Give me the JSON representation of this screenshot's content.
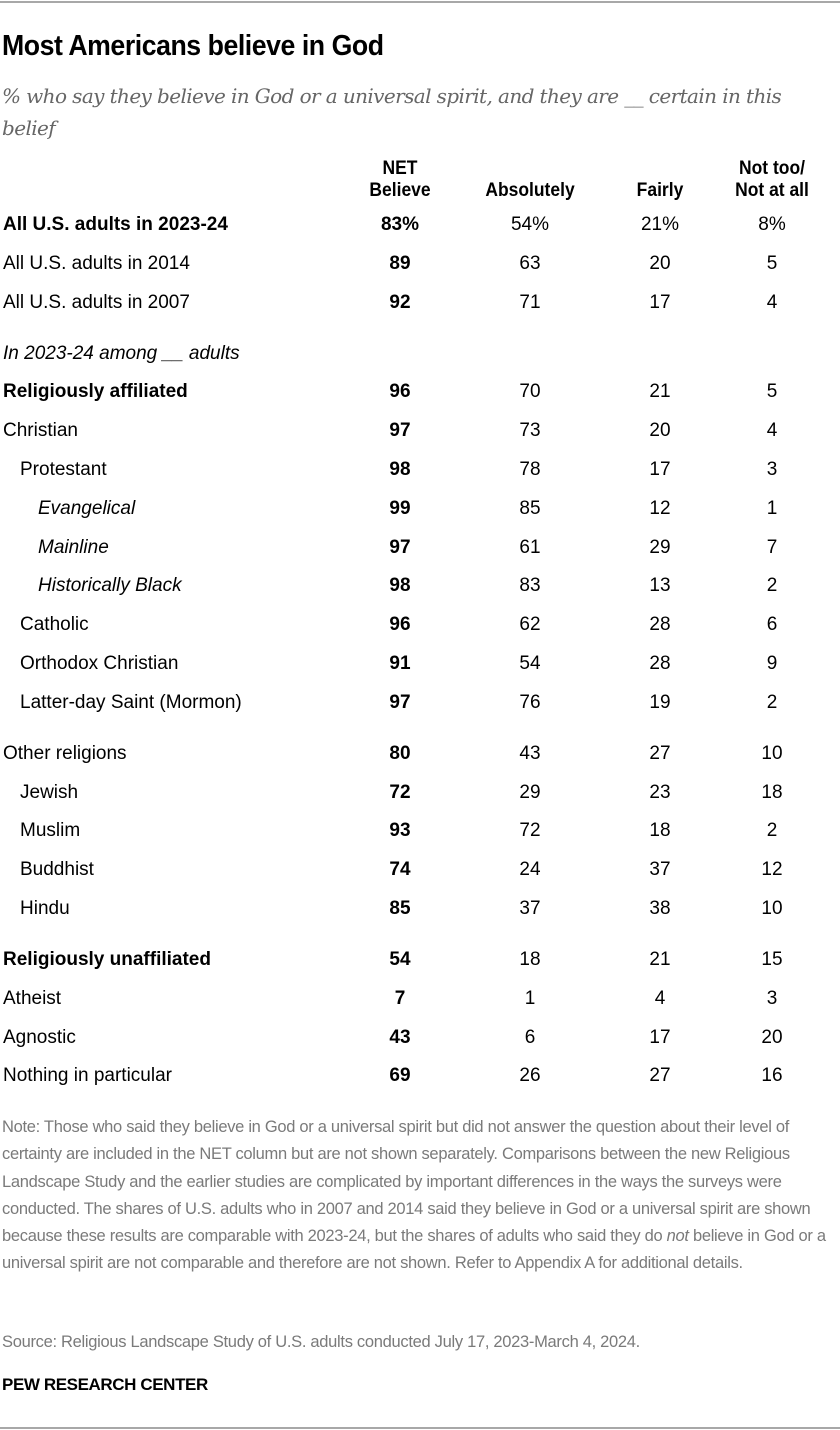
{
  "title": "Most Americans believe in God",
  "subtitle": "% who say they believe in God or a universal spirit, and they are __ certain in this belief",
  "note_before": "Note: Those who said they believe in God or a universal spirit but did not answer the question about their level of certainty are included in the NET column but are not shown separately. Comparisons between the new Religious Landscape Study and the earlier studies are complicated by important differences in the ways the surveys were conducted. The shares of U.S. adults who in 2007 and 2014 said they believe in God or a universal spirit are shown because these results are comparable with 2023-24, but the shares of adults who said they do ",
  "note_italic": "not",
  "note_after": " believe in God or a universal spirit are not comparable and therefore are not shown. Refer to Appendix A for additional details.",
  "source": "Source: Religious Landscape Study of U.S. adults conducted July 17, 2023-March 4, 2024.",
  "org": "PEW RESEARCH CENTER",
  "chart_data": {
    "type": "table",
    "title": "Most Americans believe in God",
    "columns": [
      "NET Believe",
      "Absolutely",
      "Fairly",
      "Not too/ Not at all"
    ],
    "column_lines": [
      [
        "NET",
        "Believe"
      ],
      [
        "",
        "Absolutely"
      ],
      [
        "",
        "Fairly"
      ],
      [
        "Not too/",
        "Not at all"
      ]
    ],
    "rows": [
      {
        "label": "All U.S. adults in 2023-24",
        "level": 0,
        "style": "bold",
        "values": [
          "83%",
          "54%",
          "21%",
          "8%"
        ]
      },
      {
        "label": "All U.S. adults in 2014",
        "level": 0,
        "style": "normal",
        "values": [
          "89",
          "63",
          "20",
          "5"
        ]
      },
      {
        "label": "All U.S. adults in 2007",
        "level": 0,
        "style": "normal",
        "values": [
          "92",
          "71",
          "17",
          "4"
        ]
      },
      {
        "label": "In 2023-24 among __ adults",
        "level": 0,
        "style": "section",
        "gap": true,
        "values": []
      },
      {
        "label": "Religiously affiliated",
        "level": 0,
        "style": "bold",
        "values": [
          "96",
          "70",
          "21",
          "5"
        ]
      },
      {
        "label": "Christian",
        "level": 0,
        "style": "normal",
        "values": [
          "97",
          "73",
          "20",
          "4"
        ]
      },
      {
        "label": "Protestant",
        "level": 1,
        "style": "normal",
        "values": [
          "98",
          "78",
          "17",
          "3"
        ]
      },
      {
        "label": "Evangelical",
        "level": 2,
        "style": "italic",
        "values": [
          "99",
          "85",
          "12",
          "1"
        ]
      },
      {
        "label": "Mainline",
        "level": 2,
        "style": "italic",
        "values": [
          "97",
          "61",
          "29",
          "7"
        ]
      },
      {
        "label": "Historically Black",
        "level": 2,
        "style": "italic",
        "values": [
          "98",
          "83",
          "13",
          "2"
        ]
      },
      {
        "label": "Catholic",
        "level": 1,
        "style": "normal",
        "values": [
          "96",
          "62",
          "28",
          "6"
        ]
      },
      {
        "label": "Orthodox Christian",
        "level": 1,
        "style": "normal",
        "values": [
          "91",
          "54",
          "28",
          "9"
        ]
      },
      {
        "label": "Latter-day Saint (Mormon)",
        "level": 1,
        "style": "normal",
        "values": [
          "97",
          "76",
          "19",
          "2"
        ]
      },
      {
        "label": "Other religions",
        "level": 0,
        "style": "normal",
        "gap": true,
        "values": [
          "80",
          "43",
          "27",
          "10"
        ]
      },
      {
        "label": "Jewish",
        "level": 1,
        "style": "normal",
        "values": [
          "72",
          "29",
          "23",
          "18"
        ]
      },
      {
        "label": "Muslim",
        "level": 1,
        "style": "normal",
        "values": [
          "93",
          "72",
          "18",
          "2"
        ]
      },
      {
        "label": "Buddhist",
        "level": 1,
        "style": "normal",
        "values": [
          "74",
          "24",
          "37",
          "12"
        ]
      },
      {
        "label": "Hindu",
        "level": 1,
        "style": "normal",
        "values": [
          "85",
          "37",
          "38",
          "10"
        ]
      },
      {
        "label": "Religiously unaffiliated",
        "level": 0,
        "style": "bold",
        "gap": true,
        "values": [
          "54",
          "18",
          "21",
          "15"
        ]
      },
      {
        "label": "Atheist",
        "level": 0,
        "style": "normal",
        "values": [
          "7",
          "1",
          "4",
          "3"
        ]
      },
      {
        "label": "Agnostic",
        "level": 0,
        "style": "normal",
        "values": [
          "43",
          "6",
          "17",
          "20"
        ]
      },
      {
        "label": "Nothing in particular",
        "level": 0,
        "style": "normal",
        "values": [
          "69",
          "26",
          "27",
          "16"
        ]
      }
    ]
  }
}
